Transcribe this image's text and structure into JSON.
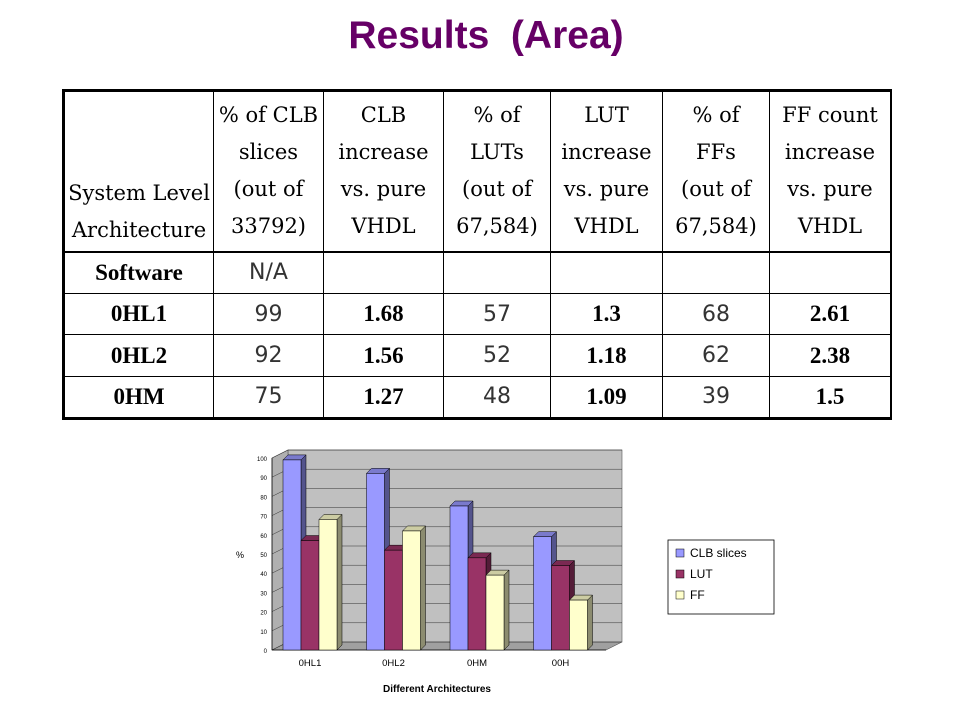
{
  "title": "Results  (Area)",
  "table": {
    "headers": [
      "System Level\nArchitecture",
      "% of CLB\nslices\n(out of\n33792)",
      "CLB\nincrease\nvs. pure\nVHDL",
      "% of\nLUTs\n(out of\n67,584)",
      "LUT\nincrease\nvs. pure\nVHDL",
      "% of\nFFs\n(out of\n67,584)",
      "FF count\nincrease\nvs. pure\nVHDL"
    ],
    "rows": [
      [
        "Software",
        "N/A",
        "",
        "",
        "",
        "",
        ""
      ],
      [
        "0HL1",
        "99",
        "1.68",
        "57",
        "1.3",
        "68",
        "2.61"
      ],
      [
        "0HL2",
        "92",
        "1.56",
        "52",
        "1.18",
        "62",
        "2.38"
      ],
      [
        "0HM",
        "75",
        "1.27",
        "48",
        "1.09",
        "39",
        "1.5"
      ]
    ]
  },
  "chart_data": {
    "type": "bar",
    "categories": [
      "0HL1",
      "0HL2",
      "0HM",
      "00H"
    ],
    "series": [
      {
        "name": "CLB slices",
        "values": [
          99,
          92,
          75,
          59
        ],
        "color": "#9999ff"
      },
      {
        "name": "LUT",
        "values": [
          57,
          52,
          48,
          44
        ],
        "color": "#993366"
      },
      {
        "name": "FF",
        "values": [
          68,
          62,
          39,
          26
        ],
        "color": "#ffffcc"
      }
    ],
    "xlabel": "Different Architectures",
    "ylabel": "%",
    "ylim": [
      0,
      100
    ],
    "yticks": [
      "0",
      "10",
      "20",
      "30",
      "40",
      "50",
      "60",
      "70",
      "80",
      "90",
      "100"
    ],
    "grid": true,
    "legend": "right",
    "style": "3d-clustered"
  }
}
